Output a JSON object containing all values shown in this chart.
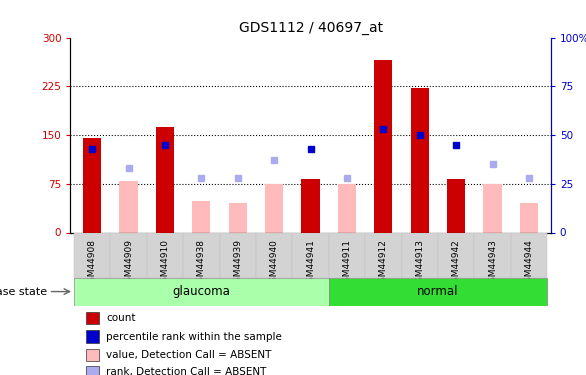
{
  "title": "GDS1112 / 40697_at",
  "samples": [
    "GSM44908",
    "GSM44909",
    "GSM44910",
    "GSM44938",
    "GSM44939",
    "GSM44940",
    "GSM44941",
    "GSM44911",
    "GSM44912",
    "GSM44913",
    "GSM44942",
    "GSM44943",
    "GSM44944"
  ],
  "disease_groups": [
    {
      "label": "glaucoma",
      "indices": [
        0,
        1,
        2,
        3,
        4,
        5,
        6
      ],
      "color": "#aaffaa"
    },
    {
      "label": "normal",
      "indices": [
        7,
        8,
        9,
        10,
        11,
        12
      ],
      "color": "#33dd33"
    }
  ],
  "red_bars": [
    145,
    null,
    163,
    null,
    null,
    null,
    82,
    null,
    265,
    222,
    82,
    null,
    null
  ],
  "pink_bars": [
    null,
    80,
    null,
    48,
    45,
    75,
    null,
    75,
    null,
    null,
    null,
    75,
    45
  ],
  "blue_squares_pct": [
    43,
    null,
    45,
    null,
    null,
    null,
    43,
    null,
    53,
    50,
    45,
    null,
    null
  ],
  "light_blue_squares_pct": [
    null,
    33,
    null,
    28,
    28,
    37,
    null,
    28,
    null,
    null,
    null,
    35,
    28
  ],
  "ylim_left": [
    0,
    300
  ],
  "ylim_right": [
    0,
    100
  ],
  "yticks_left": [
    0,
    75,
    150,
    225,
    300
  ],
  "yticks_right": [
    0,
    25,
    50,
    75,
    100
  ],
  "ytick_labels_left": [
    "0",
    "75",
    "150",
    "225",
    "300"
  ],
  "ytick_labels_right": [
    "0",
    "25",
    "50",
    "75",
    "100%"
  ],
  "left_axis_color": "#cc0000",
  "right_axis_color": "#0000cc",
  "red_bar_color": "#cc0000",
  "pink_bar_color": "#ffbbbb",
  "blue_sq_color": "#0000cc",
  "light_blue_sq_color": "#aaaaee",
  "disease_state_label": "disease state",
  "legend_items": [
    {
      "label": "count",
      "color": "#cc0000"
    },
    {
      "label": "percentile rank within the sample",
      "color": "#0000cc"
    },
    {
      "label": "value, Detection Call = ABSENT",
      "color": "#ffbbbb"
    },
    {
      "label": "rank, Detection Call = ABSENT",
      "color": "#aaaaee"
    }
  ]
}
